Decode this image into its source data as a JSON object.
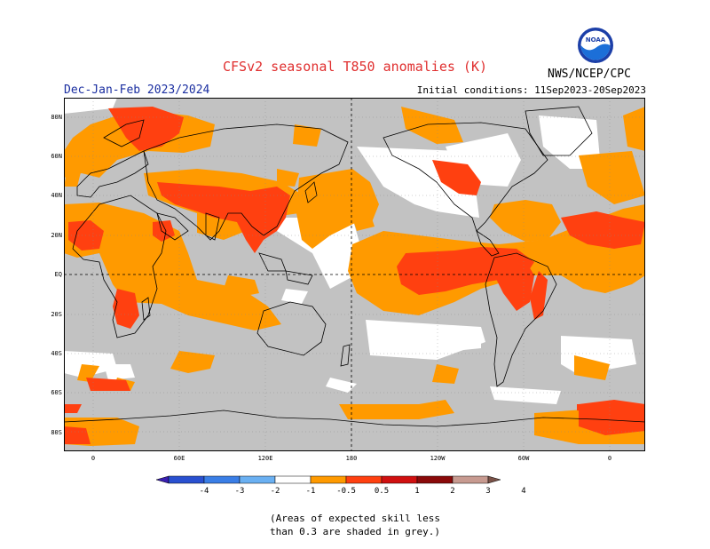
{
  "title": "CFSv2 seasonal T850 anomalies (K)",
  "season": "Dec-Jan-Feb 2023/2024",
  "initial_conditions": "Initial conditions: 11Sep2023-20Sep2023",
  "agency": "NWS/NCEP/CPC",
  "logo_text": "NOAA",
  "lat_labels": [
    "80N",
    "60N",
    "40N",
    "20N",
    "EQ",
    "20S",
    "40S",
    "60S",
    "80S"
  ],
  "lon_labels": [
    "0",
    "60E",
    "120E",
    "180",
    "120W",
    "60W",
    "0"
  ],
  "colorbar": {
    "labels": [
      "-4",
      "-3",
      "-2",
      "-1",
      "-0.5",
      "0.5",
      "1",
      "2",
      "3",
      "4"
    ],
    "colors": [
      "#3a1fb0",
      "#2950d0",
      "#3a7ee6",
      "#6ab0f2",
      "#ffffff",
      "#ff9a00",
      "#ff4010",
      "#d01010",
      "#8a0a0a",
      "#c79a90",
      "#7a5248"
    ]
  },
  "legend_colors": {
    "grey_low_skill": "#c2c2c2",
    "ocean_land_neutral": "#ffffff"
  },
  "note_line1": "(Areas of expected skill less",
  "note_line2": "than 0.3 are shaded in grey.)"
}
